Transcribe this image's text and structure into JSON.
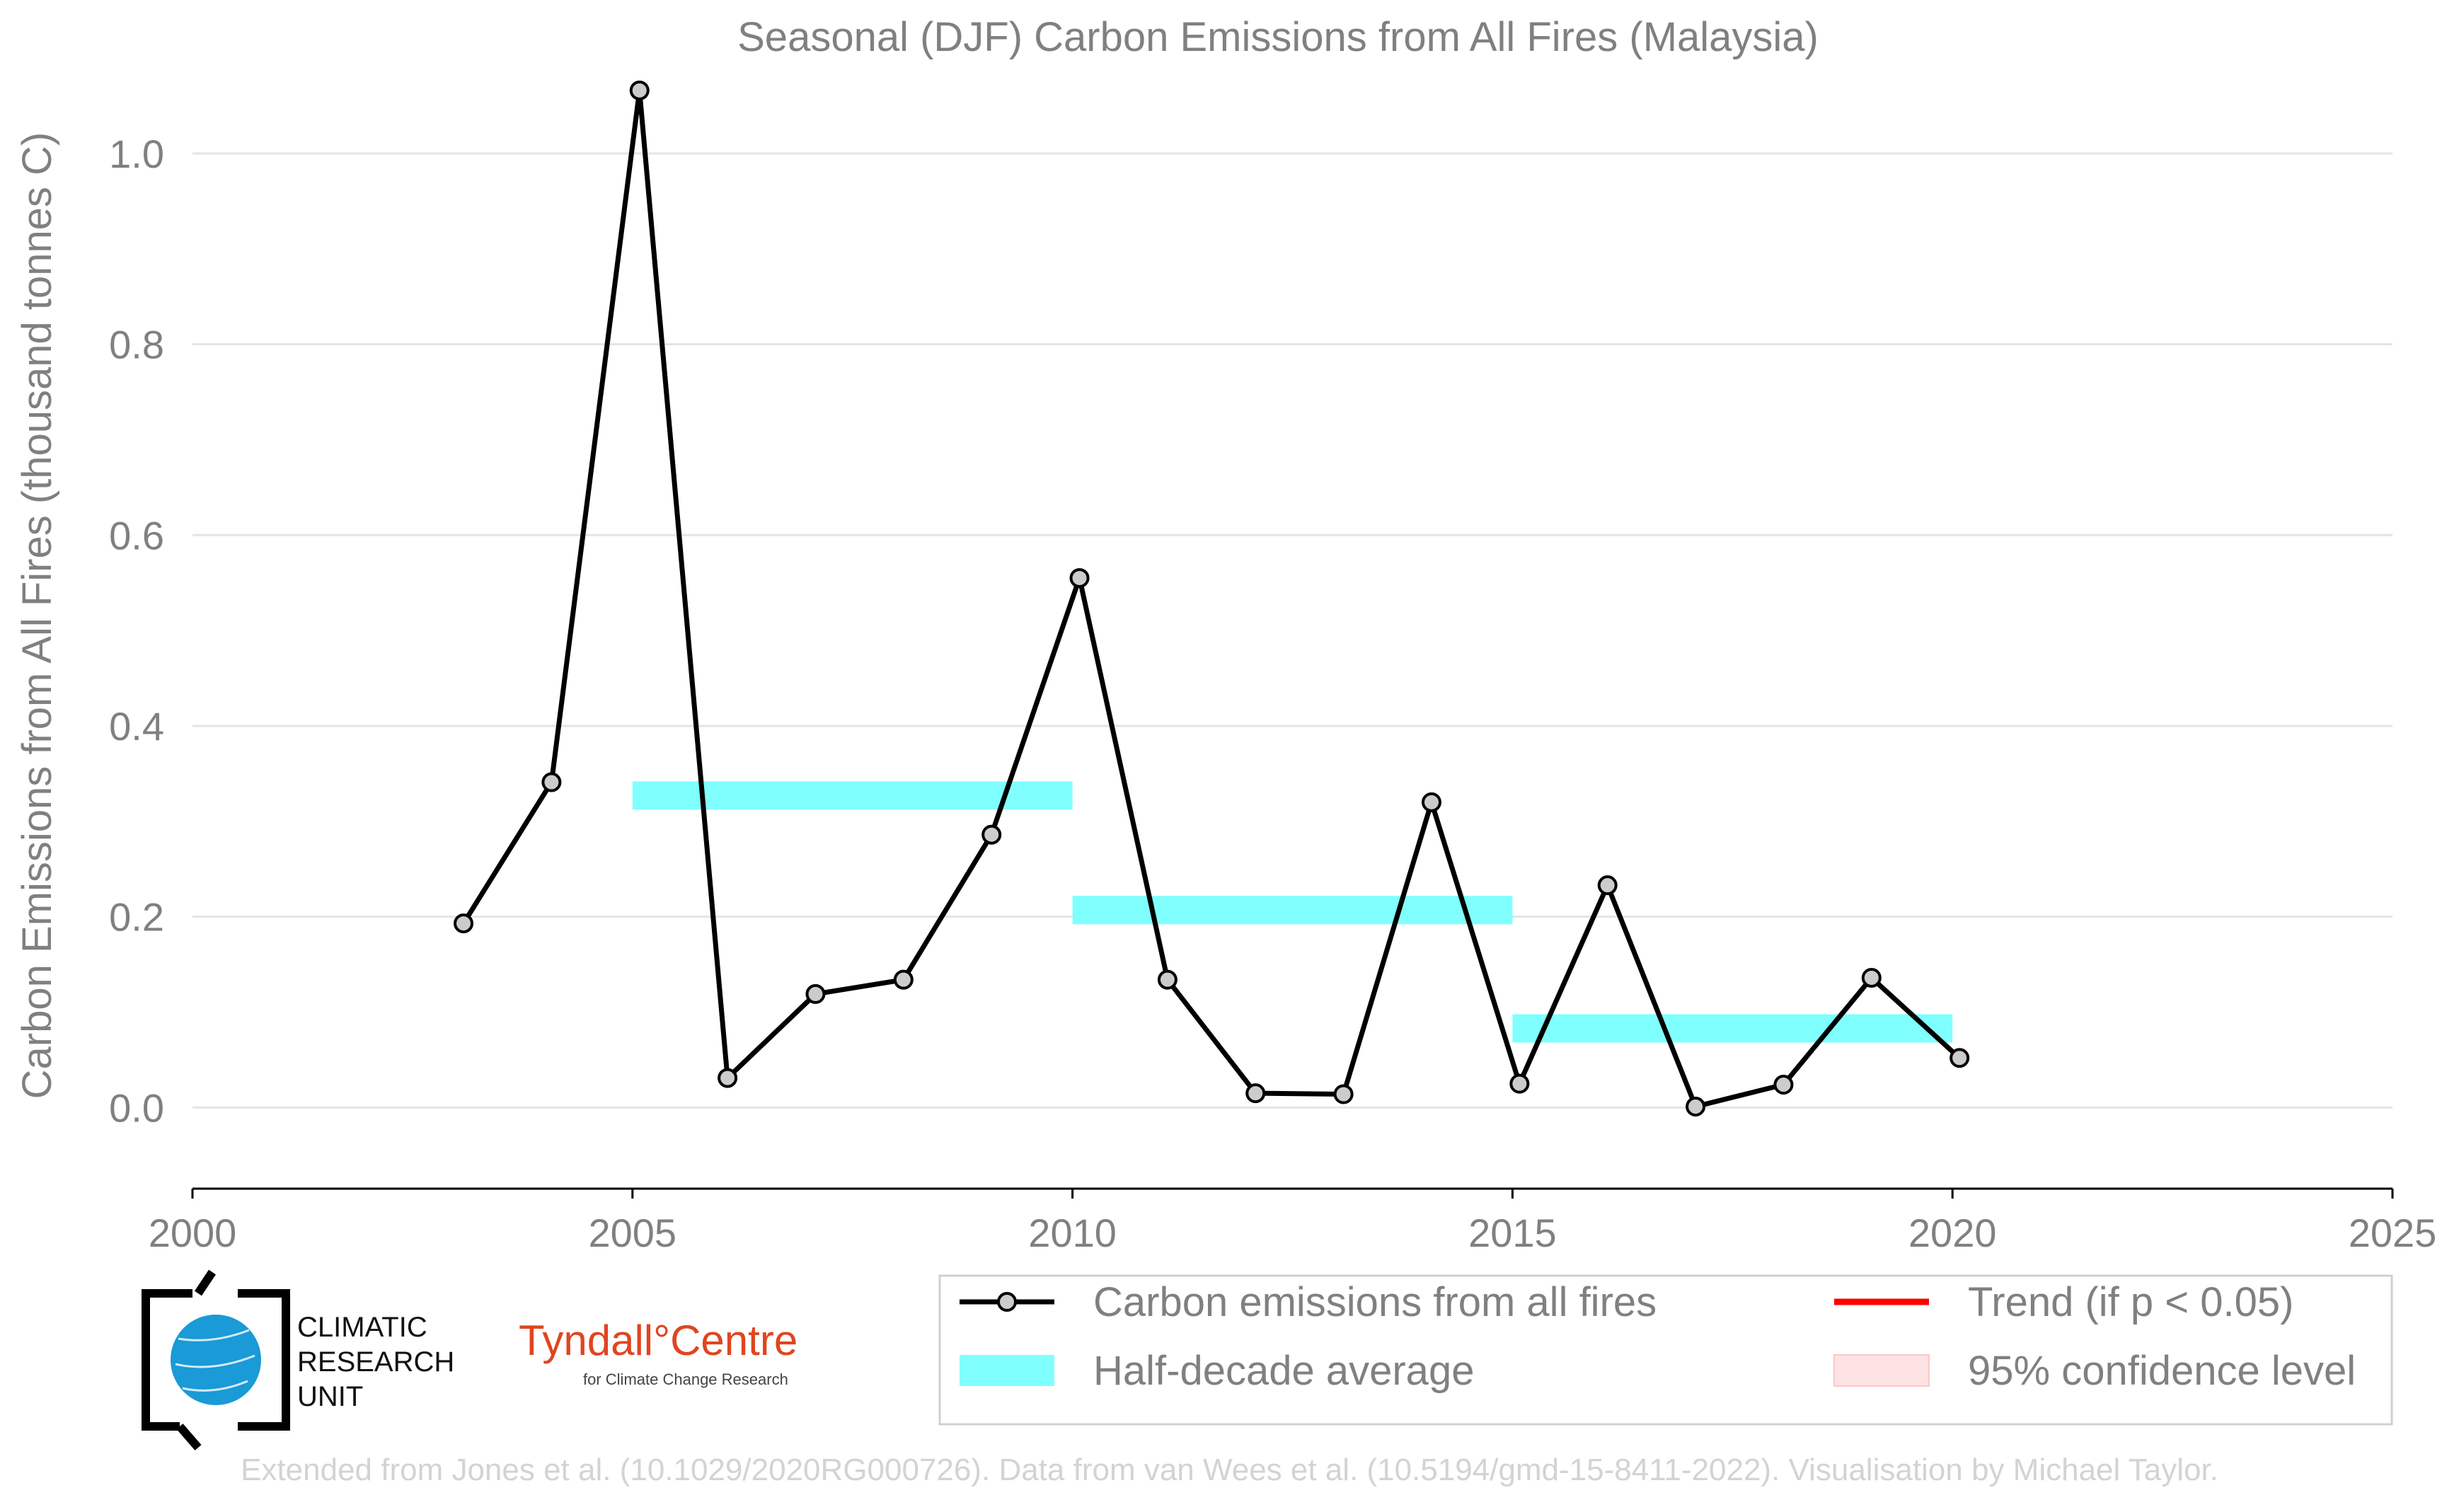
{
  "chart_data": {
    "type": "line",
    "title": "Seasonal (DJF) Carbon Emissions from All Fires (Malaysia)",
    "xlabel": "",
    "ylabel": "Carbon Emissions from All Fires (thousand tonnes C)",
    "xlim": [
      2000,
      2025
    ],
    "ylim": [
      -0.085,
      1.1
    ],
    "x_ticks": [
      2000,
      2005,
      2010,
      2015,
      2020,
      2025
    ],
    "y_ticks": [
      0.0,
      0.2,
      0.4,
      0.6,
      0.8,
      1.0
    ],
    "x_tick_labels": [
      "2000",
      "2005",
      "2010",
      "2015",
      "2020",
      "2025"
    ],
    "y_tick_labels": [
      "0.0",
      "0.2",
      "0.4",
      "0.6",
      "0.8",
      "1.0"
    ],
    "grid": "horizontal",
    "legend_placement": "bottom-right",
    "series": [
      {
        "name": "Carbon emissions from all fires",
        "color": "#000000",
        "marker_fill": "#cccccc",
        "x": [
          2003.08,
          2004.08,
          2005.08,
          2006.08,
          2007.08,
          2008.08,
          2009.08,
          2010.08,
          2011.08,
          2012.08,
          2013.08,
          2014.08,
          2015.08,
          2016.08,
          2017.08,
          2018.08,
          2019.08,
          2020.08
        ],
        "y": [
          0.193,
          0.341,
          1.066,
          0.031,
          0.119,
          0.134,
          0.286,
          0.555,
          0.134,
          0.015,
          0.014,
          0.32,
          0.025,
          0.233,
          0.001,
          0.024,
          0.136,
          0.052
        ]
      }
    ],
    "half_decade_average": {
      "name": "Half-decade average",
      "color": "#80ffff",
      "segments": [
        {
          "x0": 2005,
          "x1": 2010,
          "y": 0.327
        },
        {
          "x0": 2010,
          "x1": 2015,
          "y": 0.207
        },
        {
          "x0": 2015,
          "x1": 2020,
          "y": 0.083
        }
      ]
    },
    "legend": [
      {
        "label": "Carbon emissions from all fires",
        "kind": "line-marker",
        "color": "#000000"
      },
      {
        "label": "Trend (if p < 0.05)",
        "kind": "line",
        "color": "#ff0000"
      },
      {
        "label": "Half-decade average",
        "kind": "patch",
        "color": "#80ffff"
      },
      {
        "label": "95% confidence level",
        "kind": "patch",
        "color": "#fde3e3"
      }
    ]
  },
  "logos": {
    "cru_lines": [
      "CLIMATIC",
      "RESEARCH",
      "UNIT"
    ],
    "tyndall_name": "Tyndall°Centre",
    "tyndall_sub": "for Climate Change Research"
  },
  "credit": "Extended from Jones et al. (10.1029/2020RG000726). Data from van Wees et al. (10.5194/gmd-15-8411-2022). Visualisation by Michael Taylor.",
  "colors": {
    "text": "#808080",
    "grid": "#e4e4e4",
    "axis": "#000000",
    "half_decade": "#80ffff",
    "trend": "#ff0000",
    "ci": "#fde3e3",
    "credit": "#d3d3d3",
    "tyndall": "#e0451f",
    "globe": "#1a9ad6"
  }
}
